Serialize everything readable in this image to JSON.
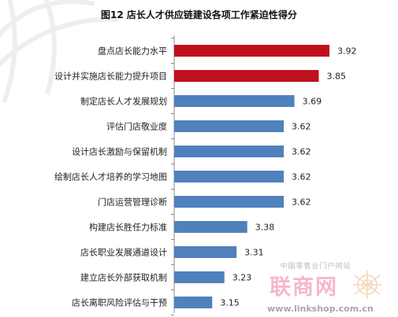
{
  "chart_data": {
    "type": "bar",
    "orientation": "horizontal",
    "title": "图12  店长人才供应链建设各项工作紧迫性得分",
    "categories": [
      "盘点店长能力水平",
      "设计并实施店长能力提升项目",
      "制定店长人才发展规划",
      "评估门店敬业度",
      "设计店长激励与保留机制",
      "绘制店长人才培养的学习地图",
      "门店运营管理诊断",
      "构建店长胜任力标准",
      "店长职业发展通道设计",
      "建立店长外部获取机制",
      "店长离职风险评估与干预"
    ],
    "values": [
      3.92,
      3.85,
      3.69,
      3.62,
      3.62,
      3.62,
      3.62,
      3.38,
      3.31,
      3.23,
      3.15
    ],
    "value_labels": [
      "3.92",
      "3.85",
      "3.69",
      "3.62",
      "3.62",
      "3.62",
      "3.62",
      "3.38",
      "3.31",
      "3.23",
      "3.15"
    ],
    "highlight_count": 2,
    "colors": {
      "highlight": "#c0101e",
      "normal": "#4f81bd"
    },
    "xlim": [
      2.9,
      4.0
    ],
    "grid": false,
    "legend": false
  },
  "watermark": {
    "cn_text": "中国零售业门户网站",
    "brand": "联商网",
    "site": "www.linkshop.com.cn"
  }
}
